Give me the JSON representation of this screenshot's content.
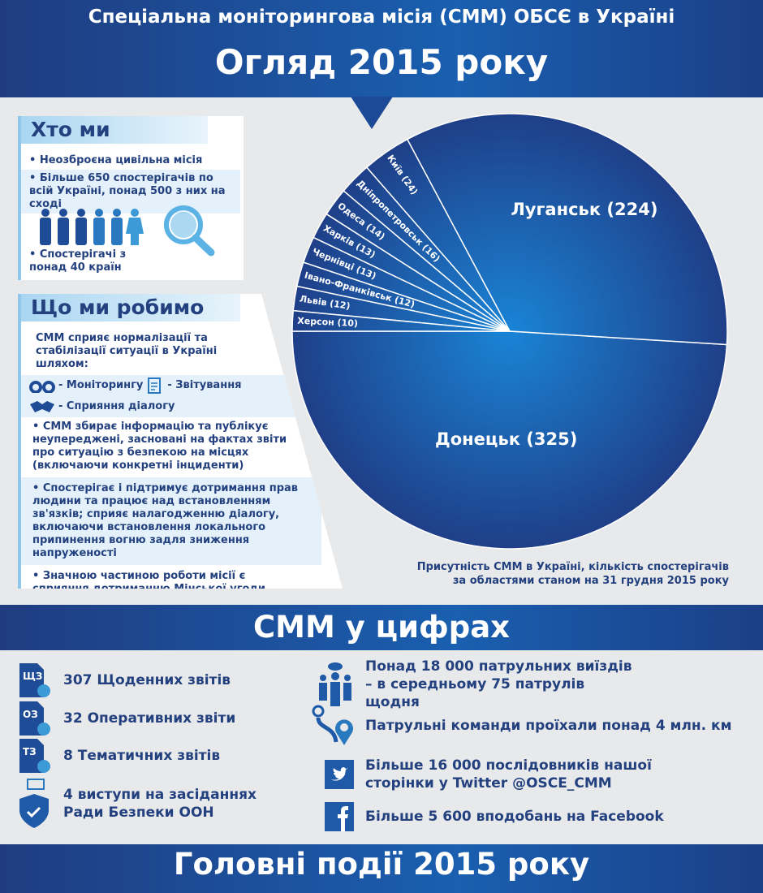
{
  "header": {
    "subtitle": "Спеціальна моніторингова місія (СММ) ОБСЄ в Україні",
    "title": "Огляд 2015 року"
  },
  "who": {
    "title": "Хто ми",
    "items": [
      "• Неозброєна цивільна місія",
      "• Більше 650 спостерігачів по всій Україні, понад 500 з них на сході",
      "• Спостерігачі з понад 40 країн"
    ]
  },
  "what": {
    "title": "Що ми робимо",
    "intro": "СММ сприяє нормалізації та стабілізації ситуації в Україні шляхом:",
    "monitoring": "- Моніторингу",
    "reporting": "- Звітування",
    "dialogue": "- Сприяння діалогу",
    "items": [
      "• СММ збирає інформацію та публікує неупереджені, засновані на фактах звіти про ситуацію з безпекою на місцях (включаючи конкретні інциденти)",
      "• Спостерігає і підтримує дотримання прав людини та працює над встановленням зв'язків; сприяє налагодженню діалогу, включаючи встановлення локального припинення вогню задля зниження напруженості",
      "• Значною частиною роботи місії є сприяння дотриманню Мінської угоди"
    ]
  },
  "chart_data": {
    "type": "pie",
    "title": "Присутність СММ в Україні, кількість спостерігачів за областями станом на 31 грудня 2015 року",
    "caption_lines": [
      "Присутність СММ в Україні, кількість спостерігачів",
      "за областями станом на 31 грудня 2015 року"
    ],
    "slices": [
      {
        "name": "Донецьк",
        "value": 325
      },
      {
        "name": "Луганськ",
        "value": 224
      },
      {
        "name": "Київ",
        "value": 24
      },
      {
        "name": "Дніпропетровськ",
        "value": 16
      },
      {
        "name": "Одеса",
        "value": 14
      },
      {
        "name": "Харків",
        "value": 13
      },
      {
        "name": "Чернівці",
        "value": 13
      },
      {
        "name": "Івано-Франківськ",
        "value": 12
      },
      {
        "name": "Львів",
        "value": 12
      },
      {
        "name": "Херсон",
        "value": 10
      }
    ],
    "colors": {
      "inner": "#1a84d6",
      "outer": "#1f3f88"
    }
  },
  "numbers": {
    "title": "СММ у цифрах",
    "left": [
      {
        "icon": "ЩЗ",
        "text": "307 Щоденних звітів"
      },
      {
        "icon": "ОЗ",
        "text": "32 Оперативних звіти"
      },
      {
        "icon": "ТЗ",
        "text": "8 Тематичних звітів"
      },
      {
        "text": "4 виступи на засіданнях Ради Безпеки ООН"
      }
    ],
    "right": [
      "Понад 18 000 патрульних виїздів – в середньому 75 патрулів щодня",
      "Патрульні команди проїхали понад 4 млн. км",
      "Більше 16 000 послідовників нашої сторінки у Twitter @OSCE_CMM",
      "Більше 5 600 вподобань на Facebook"
    ]
  },
  "events": {
    "title": "Головні події 2015 року"
  }
}
